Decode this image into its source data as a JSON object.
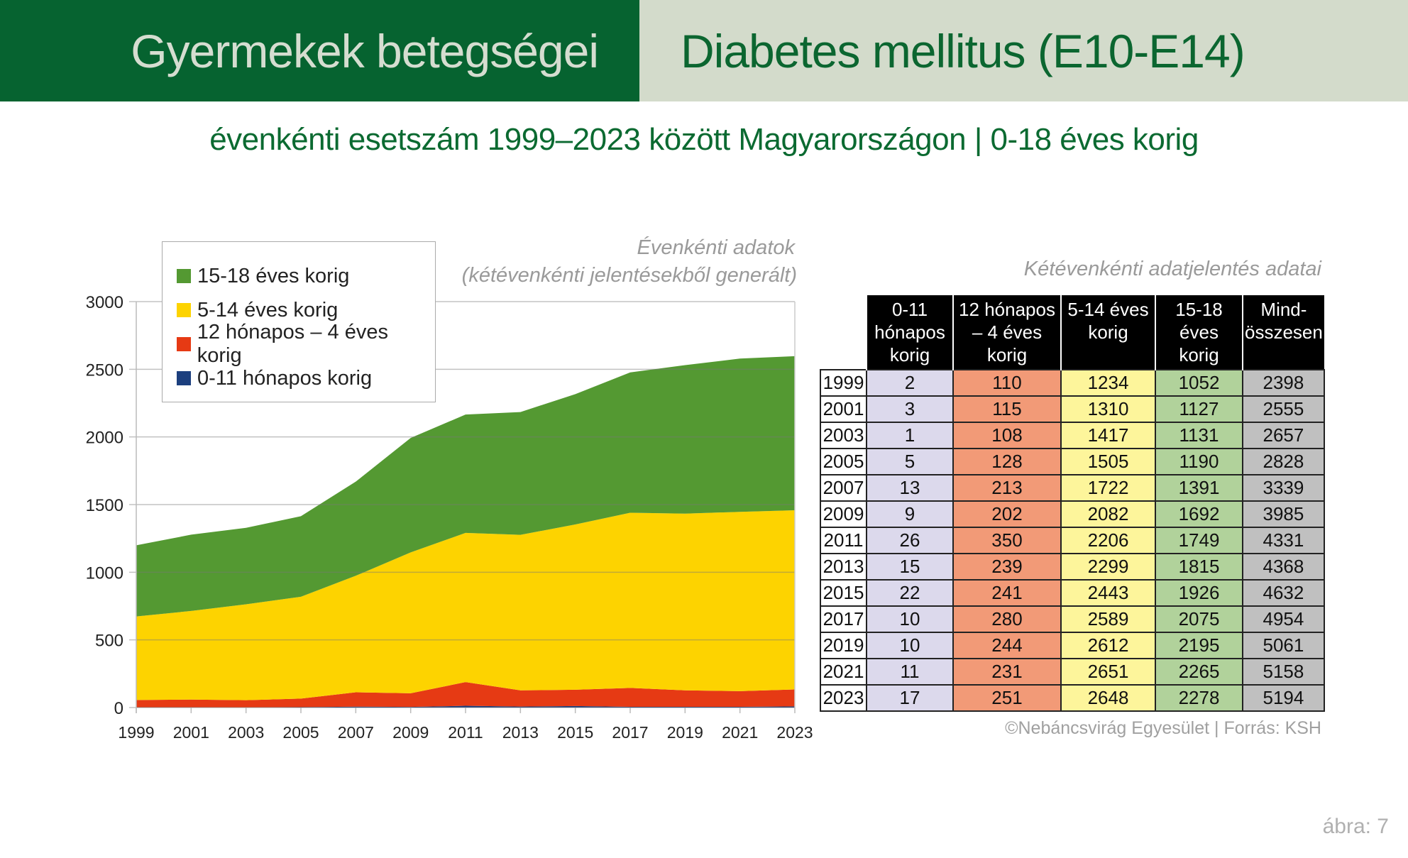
{
  "header": {
    "left_title": "Gyermekek betegségei",
    "right_title": "Diabetes mellitus (E10-E14)"
  },
  "subtitle": "évenkénti esetszám 1999–2023 között Magyarországon  |  0-18 éves korig",
  "chart_note": {
    "line1": "Évenkénti adatok",
    "line2": "(kétévenkénti jelentésekből generált)"
  },
  "chart_data": {
    "type": "area",
    "stacked": true,
    "x": [
      1999,
      2001,
      2003,
      2005,
      2007,
      2009,
      2011,
      2013,
      2015,
      2017,
      2019,
      2021,
      2023
    ],
    "xticks": [
      "1999",
      "2001",
      "2003",
      "2005",
      "2007",
      "2009",
      "2011",
      "2013",
      "2015",
      "2017",
      "2019",
      "2021",
      "2023"
    ],
    "yticks": [
      "0",
      "500",
      "1000",
      "1500",
      "2000",
      "2500",
      "3000"
    ],
    "ylim": [
      0,
      3000
    ],
    "grid": true,
    "legend_position": "top-left",
    "series": [
      {
        "name": "0-11 hónapos korig",
        "color": "#1c3f7e",
        "values": [
          1,
          1.5,
          0.5,
          2.5,
          6.5,
          4.5,
          13,
          7.5,
          11,
          5,
          5,
          5.5,
          8.5
        ]
      },
      {
        "name": "12 hónapos – 4 éves korig",
        "color": "#e63a14",
        "values": [
          55,
          57.5,
          54,
          64,
          106.5,
          101,
          175,
          119.5,
          120.5,
          140,
          122,
          115.5,
          125.5
        ]
      },
      {
        "name": "5-14 éves korig",
        "color": "#fdd300",
        "values": [
          617,
          655,
          708.5,
          752.5,
          861,
          1041,
          1103,
          1149.5,
          1221.5,
          1294.5,
          1306,
          1325.5,
          1324
        ]
      },
      {
        "name": "15-18 éves korig",
        "color": "#549932",
        "values": [
          526,
          563.5,
          565.5,
          595,
          695.5,
          846,
          874.5,
          907.5,
          963,
          1037.5,
          1097.5,
          1132.5,
          1139
        ]
      }
    ],
    "legend_order": [
      "15-18 éves korig",
      "5-14 éves korig",
      "12 hónapos – 4 éves korig",
      "0-11 hónapos korig"
    ]
  },
  "table": {
    "title": "Kétévenkénti adatjelentés adatai",
    "headers": [
      "0-11 hónapos korig",
      "12 hónapos – 4 éves korig",
      "5-14 éves korig",
      "15-18 éves korig",
      "Mind-összesen"
    ],
    "rows": [
      [
        "1999",
        "2",
        "110",
        "1234",
        "1052",
        "2398"
      ],
      [
        "2001",
        "3",
        "115",
        "1310",
        "1127",
        "2555"
      ],
      [
        "2003",
        "1",
        "108",
        "1417",
        "1131",
        "2657"
      ],
      [
        "2005",
        "5",
        "128",
        "1505",
        "1190",
        "2828"
      ],
      [
        "2007",
        "13",
        "213",
        "1722",
        "1391",
        "3339"
      ],
      [
        "2009",
        "9",
        "202",
        "2082",
        "1692",
        "3985"
      ],
      [
        "2011",
        "26",
        "350",
        "2206",
        "1749",
        "4331"
      ],
      [
        "2013",
        "15",
        "239",
        "2299",
        "1815",
        "4368"
      ],
      [
        "2015",
        "22",
        "241",
        "2443",
        "1926",
        "4632"
      ],
      [
        "2017",
        "10",
        "280",
        "2589",
        "2075",
        "4954"
      ],
      [
        "2019",
        "10",
        "244",
        "2612",
        "2195",
        "5061"
      ],
      [
        "2021",
        "11",
        "231",
        "2651",
        "2265",
        "5158"
      ],
      [
        "2023",
        "17",
        "251",
        "2648",
        "2278",
        "5194"
      ]
    ]
  },
  "credit": "©Nebáncsvirág Egyesület | Forrás: KSH",
  "figure_label": "ábra: 7"
}
